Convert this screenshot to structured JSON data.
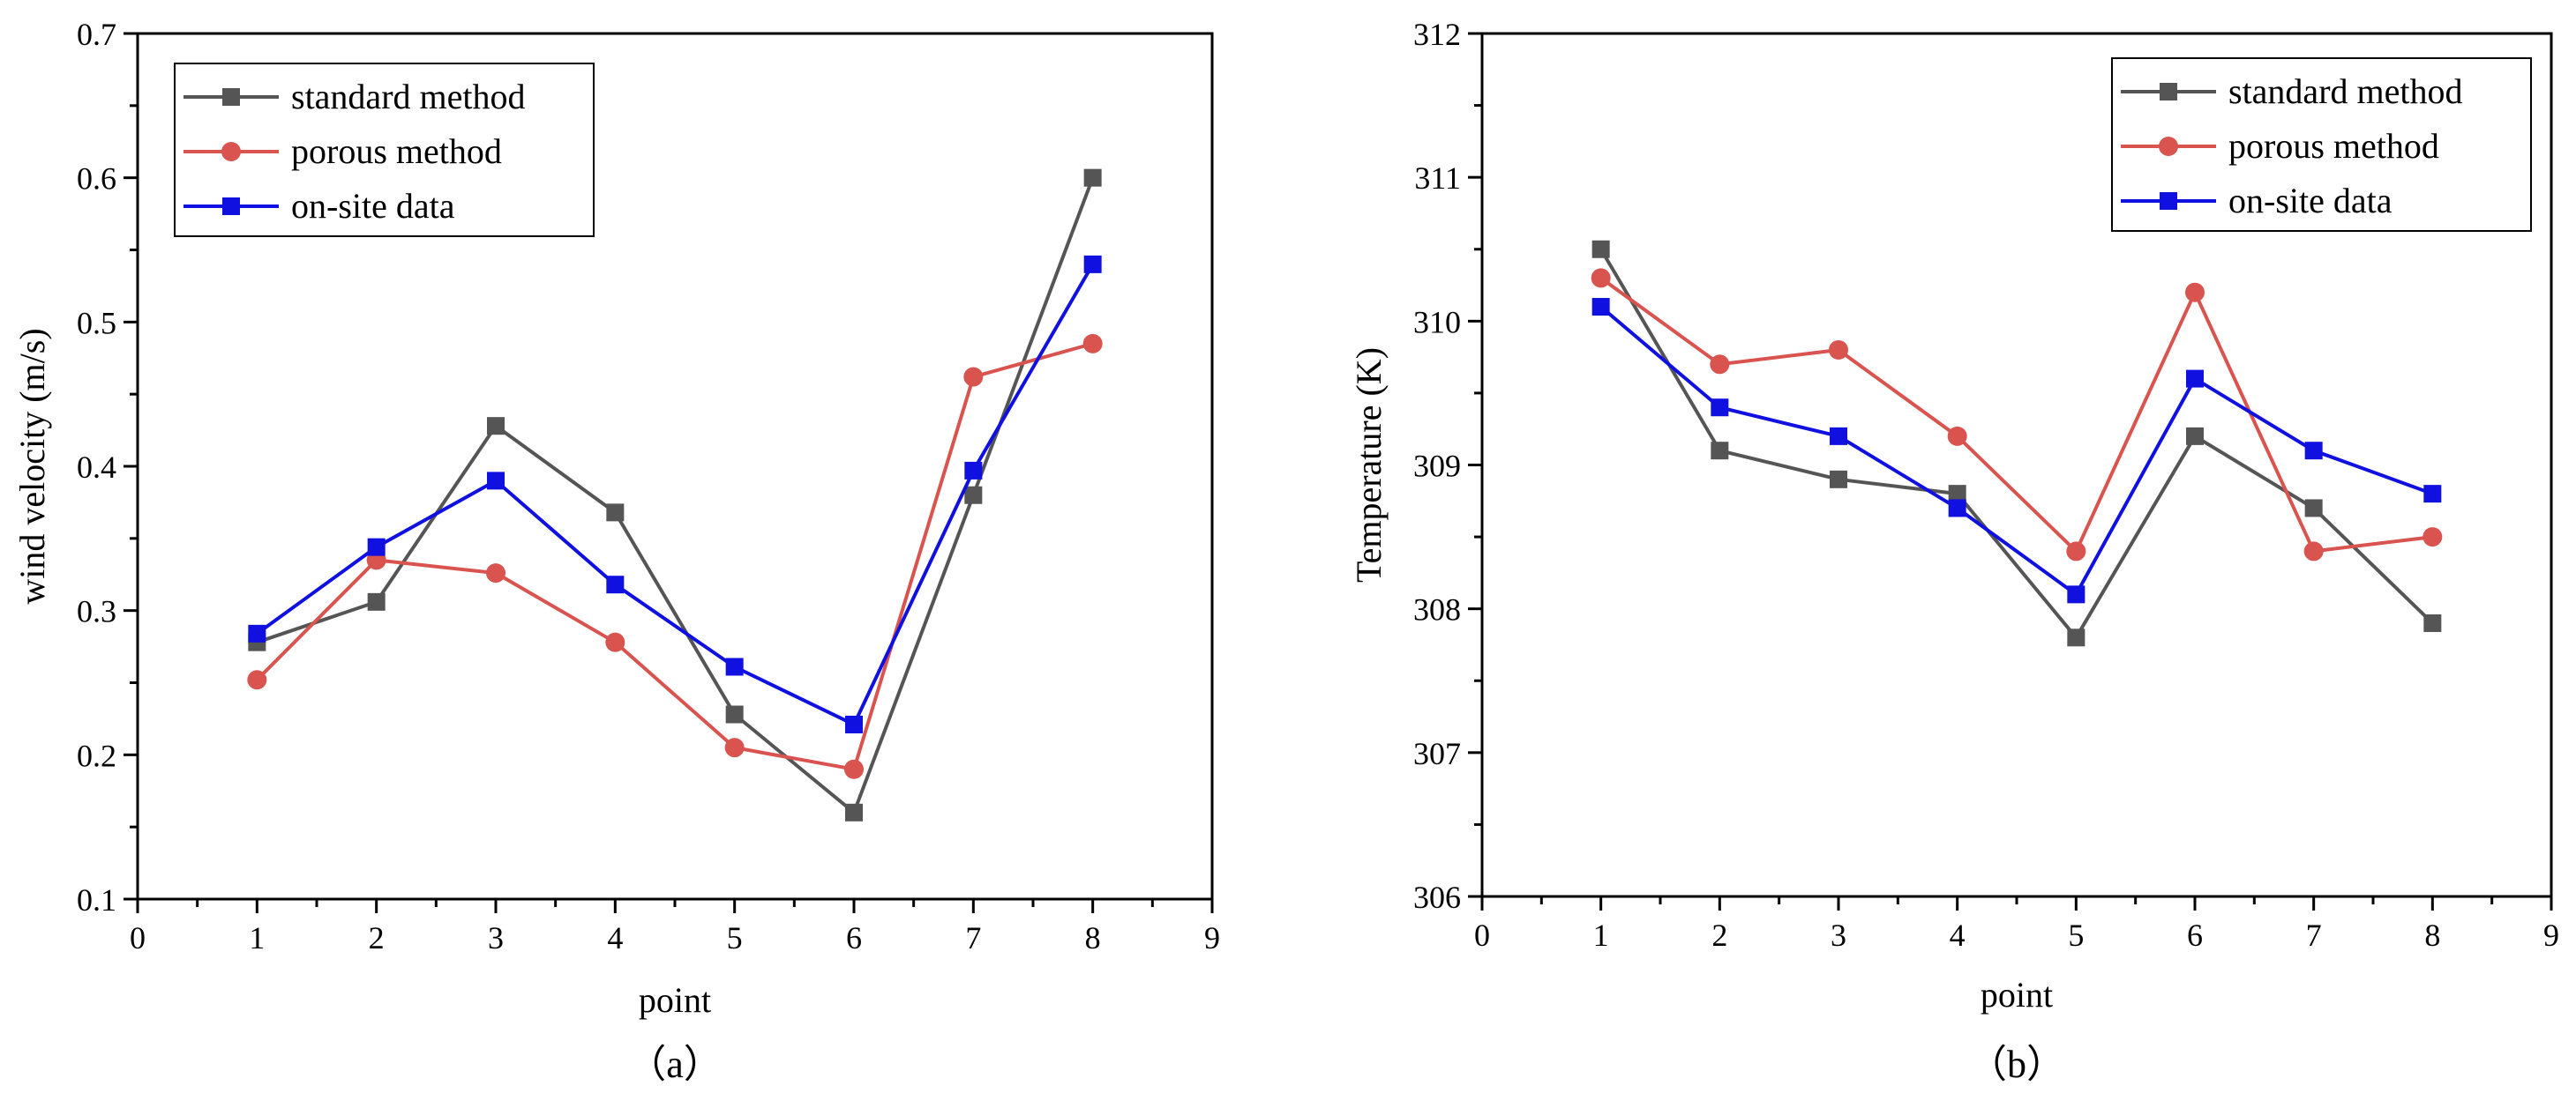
{
  "chart_data": [
    {
      "type": "line",
      "panel": "a",
      "caption": "（a）",
      "xlabel": "point",
      "ylabel": "wind velocity (m/s)",
      "xlim": [
        0,
        9
      ],
      "ylim": [
        0.1,
        0.7
      ],
      "xticks": [
        0,
        1,
        2,
        3,
        4,
        5,
        6,
        7,
        8,
        9
      ],
      "yticks": [
        0.1,
        0.2,
        0.3,
        0.4,
        0.5,
        0.6,
        0.7
      ],
      "grid": false,
      "legend_position": "top-left",
      "x": [
        1,
        2,
        3,
        4,
        5,
        6,
        7,
        8
      ],
      "series": [
        {
          "name": "standard method",
          "color": "#555555",
          "marker": "square",
          "values": [
            0.278,
            0.306,
            0.428,
            0.368,
            0.228,
            0.16,
            0.38,
            0.6
          ]
        },
        {
          "name": "porous method",
          "color": "#d9534f",
          "marker": "circle",
          "values": [
            0.252,
            0.335,
            0.326,
            0.278,
            0.205,
            0.19,
            0.462,
            0.485
          ]
        },
        {
          "name": "on-site data",
          "color": "#1010e0",
          "marker": "square",
          "values": [
            0.284,
            0.344,
            0.39,
            0.318,
            0.261,
            0.221,
            0.397,
            0.54
          ]
        }
      ]
    },
    {
      "type": "line",
      "panel": "b",
      "caption": "（b）",
      "xlabel": "point",
      "ylabel": "Temperature (K)",
      "xlim": [
        0,
        9
      ],
      "ylim": [
        306,
        312
      ],
      "xticks": [
        0,
        1,
        2,
        3,
        4,
        5,
        6,
        7,
        8,
        9
      ],
      "yticks": [
        306,
        307,
        308,
        309,
        310,
        311,
        312
      ],
      "grid": false,
      "legend_position": "top-right",
      "x": [
        1,
        2,
        3,
        4,
        5,
        6,
        7,
        8
      ],
      "series": [
        {
          "name": "standard method",
          "color": "#555555",
          "marker": "square",
          "values": [
            310.5,
            309.1,
            308.9,
            308.8,
            307.8,
            309.2,
            308.7,
            307.9
          ]
        },
        {
          "name": "porous method",
          "color": "#d9534f",
          "marker": "circle",
          "values": [
            310.3,
            309.7,
            309.8,
            309.2,
            308.4,
            310.2,
            308.4,
            308.5
          ]
        },
        {
          "name": "on-site data",
          "color": "#1010e0",
          "marker": "square",
          "values": [
            310.1,
            309.4,
            309.2,
            308.7,
            308.1,
            309.6,
            309.1,
            308.8
          ]
        }
      ]
    }
  ]
}
